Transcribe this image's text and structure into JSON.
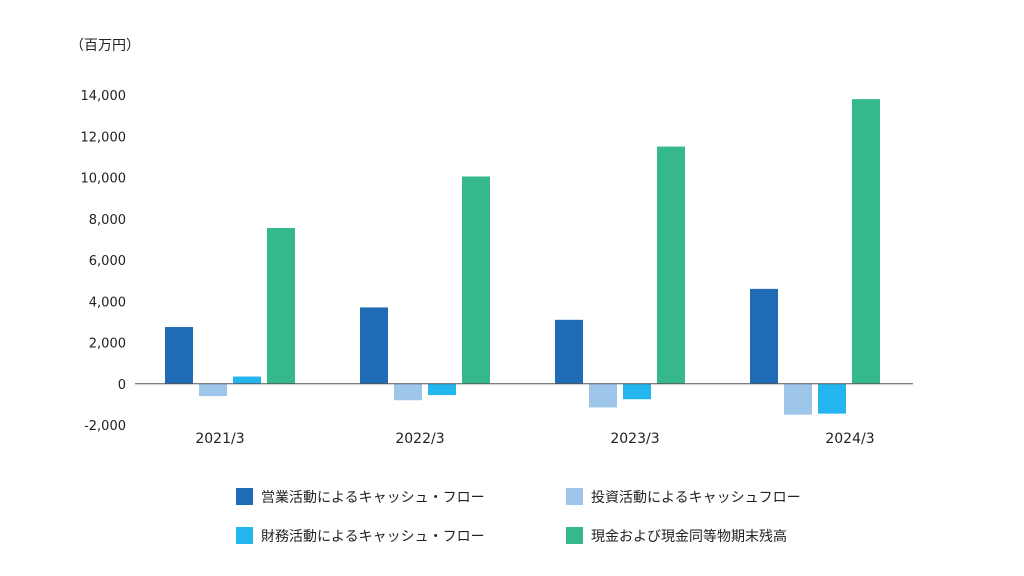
{
  "chart_data": {
    "type": "bar",
    "unit_label": "（百万円）",
    "categories": [
      "2021/3",
      "2022/3",
      "2023/3",
      "2024/3"
    ],
    "y_ticks": [
      "14,000",
      "12,000",
      "10,000",
      "8,000",
      "6,000",
      "4,000",
      "2,000",
      "0",
      "-2,000"
    ],
    "y_tick_values": [
      14000,
      12000,
      10000,
      8000,
      6000,
      4000,
      2000,
      0,
      -2000
    ],
    "ylim": [
      -2000,
      14000
    ],
    "grid": false,
    "legend_position": "bottom",
    "series": [
      {
        "name": "営業活動によるキャッシュ・フロー",
        "color": "#1f6bb5",
        "values": [
          2750,
          3700,
          3100,
          4600
        ]
      },
      {
        "name": "投資活動によるキャッシュフロー",
        "color": "#9ec5ea",
        "values": [
          -600,
          -800,
          -1150,
          -1500
        ]
      },
      {
        "name": "財務活動によるキャッシュ・フロー",
        "color": "#22b5ee",
        "values": [
          350,
          -550,
          -750,
          -1450
        ]
      },
      {
        "name": "現金および現金同等物期末残高",
        "color": "#35b88e",
        "values": [
          7550,
          10050,
          11500,
          13800
        ]
      }
    ]
  }
}
